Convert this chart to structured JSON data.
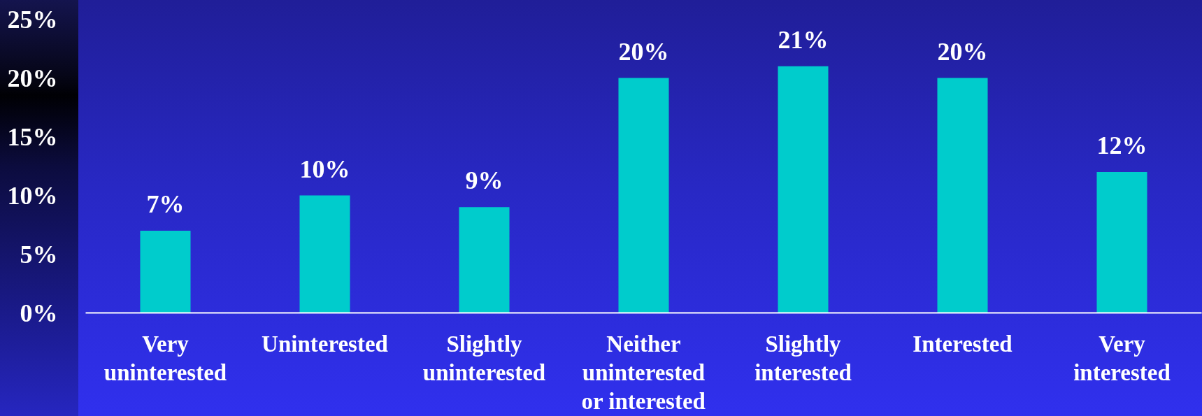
{
  "chart_data": {
    "type": "bar",
    "categories": [
      "Very uninterested",
      "Uninterested",
      "Slightly uninterested",
      "Neither uninterested or interested",
      "Slightly interested",
      "Interested",
      "Very interested"
    ],
    "values": [
      7,
      10,
      9,
      20,
      21,
      20,
      12
    ],
    "value_labels": [
      "7%",
      "10%",
      "9%",
      "20%",
      "21%",
      "20%",
      "12%"
    ],
    "color": "#00cccc",
    "ylim": [
      0,
      25
    ],
    "yticks": [
      {
        "value": 0,
        "label": "0%"
      },
      {
        "value": 5,
        "label": "5%"
      },
      {
        "value": 10,
        "label": "10%"
      },
      {
        "value": 15,
        "label": "15%"
      },
      {
        "value": 20,
        "label": "20%"
      },
      {
        "value": 25,
        "label": "25%"
      }
    ]
  }
}
